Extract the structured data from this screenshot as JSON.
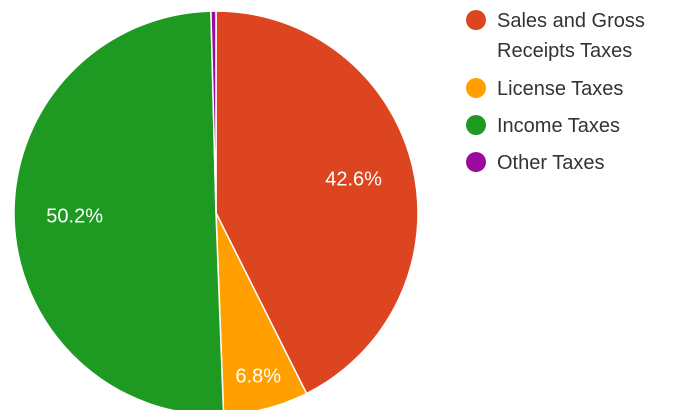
{
  "chart_data": {
    "type": "pie",
    "title": "",
    "categories": [
      "Sales and Gross Receipts Taxes",
      "License Taxes",
      "Income Taxes",
      "Other Taxes"
    ],
    "values": [
      42.6,
      6.8,
      50.2,
      0.4
    ],
    "labels": [
      "42.6%",
      "6.8%",
      "50.2%",
      ""
    ],
    "colors": [
      "#dc4520",
      "#ff9f00",
      "#1e9a22",
      "#9b0a9e"
    ],
    "legend": {
      "position": "right",
      "items": [
        {
          "lines": [
            "Sales and Gross",
            "Receipts Taxes"
          ],
          "color": "#dc4520"
        },
        {
          "lines": [
            "License Taxes"
          ],
          "color": "#ff9f00"
        },
        {
          "lines": [
            "Income Taxes"
          ],
          "color": "#1e9a22"
        },
        {
          "lines": [
            "Other Taxes"
          ],
          "color": "#9b0a9e"
        }
      ]
    }
  }
}
